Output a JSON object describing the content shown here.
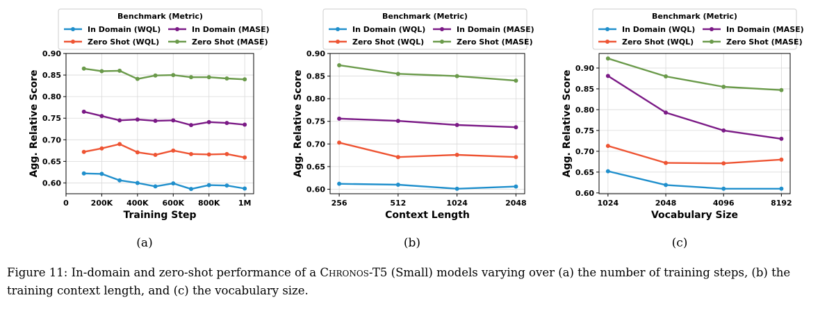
{
  "colors": {
    "in_domain_wql": "#1f8fcc",
    "in_domain_mase": "#7b1a86",
    "zero_shot_wql": "#ee5433",
    "zero_shot_mase": "#6a9a4a"
  },
  "legend": {
    "title": "Benchmark (Metric)",
    "entries": [
      "In Domain (WQL)",
      "In Domain (MASE)",
      "Zero Shot (WQL)",
      "Zero Shot (MASE)"
    ]
  },
  "panel_labels": [
    "(a)",
    "(b)",
    "(c)"
  ],
  "caption": {
    "prefix": "Figure 11: In-domain and zero-shot performance of a ",
    "model": "Chronos",
    "model_suffix": "-T5 (Small) models varying over (a) the number of training steps, (b) the training context length, and (c) the vocabulary size."
  },
  "chart_data": [
    {
      "type": "line",
      "xlabel": "Training Step",
      "ylabel": "Agg. Relative Score",
      "x_scale": "linear",
      "x": [
        100000,
        200000,
        300000,
        400000,
        500000,
        600000,
        700000,
        800000,
        900000,
        1000000
      ],
      "xlim": [
        0,
        1050000
      ],
      "xticks": [
        0,
        200000,
        400000,
        600000,
        800000,
        1000000
      ],
      "xtick_labels": [
        "0",
        "200K",
        "400K",
        "600K",
        "800K",
        "1M"
      ],
      "ylim": [
        0.575,
        0.9
      ],
      "yticks": [
        0.6,
        0.65,
        0.7,
        0.75,
        0.8,
        0.85,
        0.9
      ],
      "ytick_labels": [
        "0.60",
        "0.65",
        "0.70",
        "0.75",
        "0.80",
        "0.85",
        "0.90"
      ],
      "grid": true,
      "legend_position": "top",
      "series": [
        {
          "name": "In Domain (WQL)",
          "values": [
            0.622,
            0.621,
            0.606,
            0.6,
            0.592,
            0.599,
            0.586,
            0.595,
            0.594,
            0.587
          ]
        },
        {
          "name": "In Domain (MASE)",
          "values": [
            0.765,
            0.755,
            0.745,
            0.747,
            0.744,
            0.745,
            0.734,
            0.741,
            0.739,
            0.735
          ]
        },
        {
          "name": "Zero Shot (WQL)",
          "values": [
            0.672,
            0.68,
            0.69,
            0.671,
            0.665,
            0.675,
            0.667,
            0.666,
            0.667,
            0.659
          ]
        },
        {
          "name": "Zero Shot (MASE)",
          "values": [
            0.865,
            0.859,
            0.86,
            0.841,
            0.849,
            0.85,
            0.845,
            0.845,
            0.842,
            0.84
          ]
        }
      ]
    },
    {
      "type": "line",
      "xlabel": "Context Length",
      "ylabel": "Agg. Relative Score",
      "x_scale": "log2",
      "x": [
        256,
        512,
        1024,
        2048
      ],
      "xlim": [
        230,
        2270
      ],
      "xticks": [
        256,
        512,
        1024,
        2048
      ],
      "xtick_labels": [
        "256",
        "512",
        "1024",
        "2048"
      ],
      "ylim": [
        0.59,
        0.9
      ],
      "yticks": [
        0.6,
        0.65,
        0.7,
        0.75,
        0.8,
        0.85,
        0.9
      ],
      "ytick_labels": [
        "0.60",
        "0.65",
        "0.70",
        "0.75",
        "0.80",
        "0.85",
        "0.90"
      ],
      "grid": true,
      "legend_position": "top",
      "series": [
        {
          "name": "In Domain (WQL)",
          "values": [
            0.612,
            0.61,
            0.601,
            0.606
          ]
        },
        {
          "name": "In Domain (MASE)",
          "values": [
            0.756,
            0.751,
            0.742,
            0.737
          ]
        },
        {
          "name": "Zero Shot (WQL)",
          "values": [
            0.703,
            0.671,
            0.676,
            0.671
          ]
        },
        {
          "name": "Zero Shot (MASE)",
          "values": [
            0.874,
            0.855,
            0.85,
            0.84
          ]
        }
      ]
    },
    {
      "type": "line",
      "xlabel": "Vocabulary Size",
      "ylabel": "Agg. Relative Score",
      "x_scale": "log2",
      "x": [
        1024,
        2048,
        4096,
        8192
      ],
      "xlim": [
        920,
        9100
      ],
      "xticks": [
        1024,
        2048,
        4096,
        8192
      ],
      "xtick_labels": [
        "1024",
        "2048",
        "4096",
        "8192"
      ],
      "ylim": [
        0.598,
        0.935
      ],
      "yticks": [
        0.6,
        0.65,
        0.7,
        0.75,
        0.8,
        0.85,
        0.9
      ],
      "ytick_labels": [
        "0.60",
        "0.65",
        "0.70",
        "0.75",
        "0.80",
        "0.85",
        "0.90"
      ],
      "grid": true,
      "legend_position": "top",
      "series": [
        {
          "name": "In Domain (WQL)",
          "values": [
            0.652,
            0.619,
            0.61,
            0.61
          ]
        },
        {
          "name": "In Domain (MASE)",
          "values": [
            0.881,
            0.793,
            0.75,
            0.73
          ]
        },
        {
          "name": "Zero Shot (WQL)",
          "values": [
            0.713,
            0.672,
            0.671,
            0.68
          ]
        },
        {
          "name": "Zero Shot (MASE)",
          "values": [
            0.923,
            0.88,
            0.855,
            0.847
          ]
        }
      ]
    }
  ]
}
